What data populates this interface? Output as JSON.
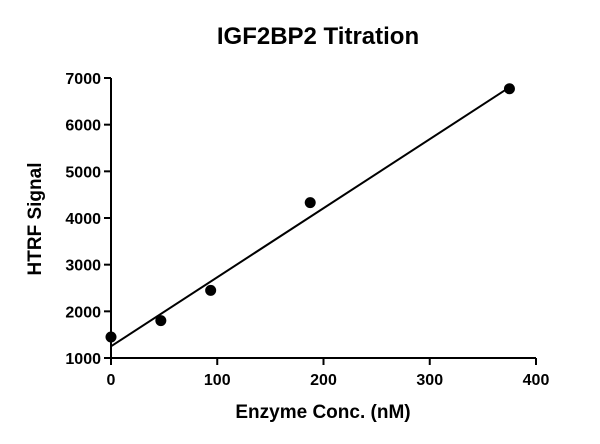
{
  "chart_data": {
    "type": "scatter",
    "title": "IGF2BP2 Titration",
    "xlabel": "Enzyme Conc. (nM)",
    "ylabel": "HTRF Signal",
    "xlim": [
      0,
      400
    ],
    "ylim": [
      1000,
      7000
    ],
    "x_ticks": [
      0,
      100,
      200,
      300,
      400
    ],
    "y_ticks": [
      1000,
      2000,
      3000,
      4000,
      5000,
      6000,
      7000
    ],
    "grid": false,
    "series": [
      {
        "x": [
          0,
          46.9,
          93.8,
          187.5,
          375
        ],
        "y": [
          1450,
          1800,
          2450,
          4330,
          6770
        ]
      }
    ],
    "fit_line": {
      "type": "linear",
      "x": [
        0,
        375
      ],
      "y": [
        1250,
        6800
      ]
    },
    "colors": {
      "points": "#000000",
      "line": "#000000"
    }
  }
}
